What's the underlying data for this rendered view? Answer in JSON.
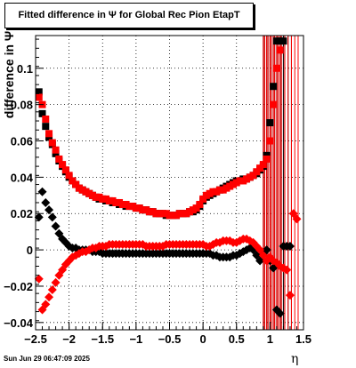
{
  "chart_data": {
    "type": "scatter",
    "title": "Fitted difference in  Ψ  for Global Rec Pion EtapT",
    "xlabel": "η",
    "ylabel": "difference in  Ψ",
    "xlim": [
      -2.5,
      1.5
    ],
    "ylim": [
      -0.044,
      0.118
    ],
    "x_ticks": [
      -2.5,
      -2,
      -1.5,
      -1,
      -0.5,
      0,
      0.5,
      1,
      1.5
    ],
    "x_tick_labels": [
      "−2.5",
      "−2",
      "−1.5",
      "−1",
      "−0.5",
      "0",
      "0.5",
      "1",
      "1.5"
    ],
    "y_ticks": [
      -0.04,
      -0.02,
      0,
      0.02,
      0.04,
      0.06,
      0.08,
      0.1
    ],
    "y_tick_labels": [
      "−0.04",
      "−0.02",
      "0",
      "0.02",
      "0.04",
      "0.06",
      "0.08",
      "0.1"
    ],
    "grid": true,
    "series": [
      {
        "color": "#000000",
        "marker": "square",
        "x": [
          -2.45,
          -2.4,
          -2.35,
          -2.3,
          -2.25,
          -2.2,
          -2.15,
          -2.1,
          -2.05,
          -2.0,
          -1.95,
          -1.9,
          -1.85,
          -1.8,
          -1.75,
          -1.7,
          -1.65,
          -1.6,
          -1.55,
          -1.5,
          -1.45,
          -1.4,
          -1.35,
          -1.3,
          -1.25,
          -1.2,
          -1.15,
          -1.1,
          -1.05,
          -1.0,
          -0.95,
          -0.9,
          -0.85,
          -0.8,
          -0.75,
          -0.7,
          -0.65,
          -0.6,
          -0.55,
          -0.5,
          -0.45,
          -0.4,
          -0.35,
          -0.3,
          -0.25,
          -0.2,
          -0.15,
          -0.1,
          -0.05,
          0.0,
          0.05,
          0.1,
          0.15,
          0.2,
          0.25,
          0.3,
          0.35,
          0.4,
          0.45,
          0.5,
          0.55,
          0.6,
          0.65,
          0.7,
          0.75,
          0.8,
          0.85,
          0.9,
          0.95,
          1.0,
          1.05,
          1.1,
          1.15,
          1.2
        ],
        "y": [
          0.087,
          0.075,
          0.068,
          0.062,
          0.058,
          0.053,
          0.049,
          0.046,
          0.043,
          0.04,
          0.038,
          0.036,
          0.034,
          0.033,
          0.032,
          0.031,
          0.03,
          0.029,
          0.028,
          0.028,
          0.027,
          0.027,
          0.026,
          0.026,
          0.025,
          0.025,
          0.024,
          0.024,
          0.024,
          0.023,
          0.023,
          0.022,
          0.022,
          0.021,
          0.021,
          0.02,
          0.02,
          0.02,
          0.019,
          0.019,
          0.019,
          0.019,
          0.02,
          0.02,
          0.02,
          0.021,
          0.021,
          0.022,
          0.024,
          0.027,
          0.029,
          0.03,
          0.031,
          0.032,
          0.033,
          0.034,
          0.035,
          0.036,
          0.037,
          0.038,
          0.038,
          0.039,
          0.039,
          0.04,
          0.041,
          0.042,
          0.044,
          0.046,
          0.052,
          0.07,
          0.09,
          0.115,
          0.115,
          0.115
        ]
      },
      {
        "color": "#000000",
        "marker": "diamond",
        "x": [
          -2.45,
          -2.4,
          -2.35,
          -2.3,
          -2.25,
          -2.2,
          -2.15,
          -2.1,
          -2.05,
          -2.0,
          -1.95,
          -1.9,
          -1.85,
          -1.8,
          -1.75,
          -1.7,
          -1.65,
          -1.6,
          -1.55,
          -1.5,
          -1.45,
          -1.4,
          -1.35,
          -1.3,
          -1.25,
          -1.2,
          -1.15,
          -1.1,
          -1.05,
          -1.0,
          -0.95,
          -0.9,
          -0.85,
          -0.8,
          -0.75,
          -0.7,
          -0.65,
          -0.6,
          -0.55,
          -0.5,
          -0.45,
          -0.4,
          -0.35,
          -0.3,
          -0.25,
          -0.2,
          -0.15,
          -0.1,
          -0.05,
          0.0,
          0.05,
          0.1,
          0.15,
          0.2,
          0.25,
          0.3,
          0.35,
          0.4,
          0.45,
          0.5,
          0.55,
          0.6,
          0.65,
          0.7,
          0.75,
          0.8,
          0.85,
          0.9,
          0.95,
          1.0,
          1.05,
          1.1,
          1.15,
          1.2,
          1.25,
          1.3
        ],
        "y": [
          0.018,
          0.032,
          0.026,
          0.022,
          0.018,
          0.013,
          0.009,
          0.006,
          0.004,
          0.002,
          0.001,
          0.001,
          0.0,
          0.0,
          0.0,
          0.0,
          -0.001,
          -0.001,
          -0.001,
          -0.002,
          -0.002,
          -0.002,
          -0.002,
          -0.002,
          -0.002,
          -0.002,
          -0.002,
          -0.002,
          -0.002,
          -0.002,
          -0.002,
          -0.002,
          -0.002,
          -0.002,
          -0.002,
          -0.002,
          -0.002,
          -0.002,
          -0.002,
          -0.002,
          -0.002,
          -0.002,
          -0.002,
          -0.002,
          -0.002,
          -0.002,
          -0.002,
          -0.002,
          -0.002,
          -0.002,
          -0.002,
          -0.002,
          -0.003,
          -0.003,
          -0.004,
          -0.004,
          -0.004,
          -0.004,
          -0.003,
          -0.003,
          -0.002,
          -0.001,
          0.0,
          0.001,
          0.0,
          -0.003,
          -0.006,
          -0.002,
          0.0,
          -0.006,
          -0.01,
          -0.033,
          -0.035,
          0.002,
          0.002,
          0.002
        ]
      },
      {
        "color": "#ff0000",
        "marker": "square",
        "x": [
          -2.45,
          -2.4,
          -2.35,
          -2.3,
          -2.25,
          -2.2,
          -2.15,
          -2.1,
          -2.05,
          -2.0,
          -1.95,
          -1.9,
          -1.85,
          -1.8,
          -1.75,
          -1.7,
          -1.65,
          -1.6,
          -1.55,
          -1.5,
          -1.45,
          -1.4,
          -1.35,
          -1.3,
          -1.25,
          -1.2,
          -1.15,
          -1.1,
          -1.05,
          -1.0,
          -0.95,
          -0.9,
          -0.85,
          -0.8,
          -0.75,
          -0.7,
          -0.65,
          -0.6,
          -0.55,
          -0.5,
          -0.45,
          -0.4,
          -0.35,
          -0.3,
          -0.25,
          -0.2,
          -0.15,
          -0.1,
          -0.05,
          0.0,
          0.05,
          0.1,
          0.15,
          0.2,
          0.25,
          0.3,
          0.35,
          0.4,
          0.45,
          0.5,
          0.55,
          0.6,
          0.65,
          0.7,
          0.75,
          0.8,
          0.85,
          0.9,
          0.95,
          1.0,
          1.05,
          1.1,
          1.15
        ],
        "y": [
          0.084,
          0.08,
          0.072,
          0.064,
          0.059,
          0.055,
          0.05,
          0.047,
          0.044,
          0.041,
          0.038,
          0.036,
          0.034,
          0.033,
          0.032,
          0.031,
          0.03,
          0.029,
          0.029,
          0.028,
          0.028,
          0.027,
          0.027,
          0.026,
          0.026,
          0.025,
          0.025,
          0.024,
          0.024,
          0.023,
          0.023,
          0.022,
          0.022,
          0.021,
          0.021,
          0.02,
          0.02,
          0.02,
          0.02,
          0.019,
          0.019,
          0.019,
          0.02,
          0.02,
          0.02,
          0.021,
          0.022,
          0.023,
          0.025,
          0.028,
          0.03,
          0.031,
          0.032,
          0.032,
          0.033,
          0.033,
          0.034,
          0.035,
          0.036,
          0.037,
          0.038,
          0.038,
          0.039,
          0.04,
          0.041,
          0.043,
          0.045,
          0.047,
          0.05,
          0.06,
          0.08,
          0.1,
          0.11
        ]
      },
      {
        "color": "#ff0000",
        "marker": "diamond",
        "x": [
          -2.45,
          -2.4,
          -2.35,
          -2.3,
          -2.25,
          -2.2,
          -2.15,
          -2.1,
          -2.05,
          -2.0,
          -1.95,
          -1.9,
          -1.85,
          -1.8,
          -1.75,
          -1.7,
          -1.65,
          -1.6,
          -1.55,
          -1.5,
          -1.45,
          -1.4,
          -1.35,
          -1.3,
          -1.25,
          -1.2,
          -1.15,
          -1.1,
          -1.05,
          -1.0,
          -0.95,
          -0.9,
          -0.85,
          -0.8,
          -0.75,
          -0.7,
          -0.65,
          -0.6,
          -0.55,
          -0.5,
          -0.45,
          -0.4,
          -0.35,
          -0.3,
          -0.25,
          -0.2,
          -0.15,
          -0.1,
          -0.05,
          0.0,
          0.05,
          0.1,
          0.15,
          0.2,
          0.25,
          0.3,
          0.35,
          0.4,
          0.45,
          0.5,
          0.55,
          0.6,
          0.65,
          0.7,
          0.75,
          0.8,
          0.85,
          0.9,
          0.95,
          1.0,
          1.05,
          1.1,
          1.15,
          1.2,
          1.25,
          1.3,
          1.35,
          1.4
        ],
        "y": [
          -0.016,
          -0.033,
          -0.03,
          -0.026,
          -0.022,
          -0.018,
          -0.014,
          -0.011,
          -0.008,
          -0.006,
          -0.004,
          -0.003,
          -0.002,
          -0.001,
          -0.001,
          0.0,
          0.001,
          0.001,
          0.002,
          0.002,
          0.002,
          0.003,
          0.003,
          0.003,
          0.003,
          0.003,
          0.003,
          0.003,
          0.003,
          0.003,
          0.003,
          0.003,
          0.002,
          0.002,
          0.002,
          0.002,
          0.002,
          0.002,
          0.003,
          0.003,
          0.003,
          0.003,
          0.003,
          0.003,
          0.003,
          0.003,
          0.003,
          0.003,
          0.003,
          0.003,
          0.002,
          0.002,
          0.003,
          0.004,
          0.004,
          0.005,
          0.005,
          0.005,
          0.004,
          0.004,
          0.005,
          0.006,
          0.006,
          0.005,
          0.004,
          0.002,
          0.0,
          -0.003,
          -0.006,
          -0.004,
          -0.006,
          -0.007,
          -0.009,
          -0.01,
          -0.011,
          -0.025,
          0.02,
          0.017
        ]
      }
    ]
  },
  "datestamp": "Sun Jun 29 06:47:09 2025"
}
